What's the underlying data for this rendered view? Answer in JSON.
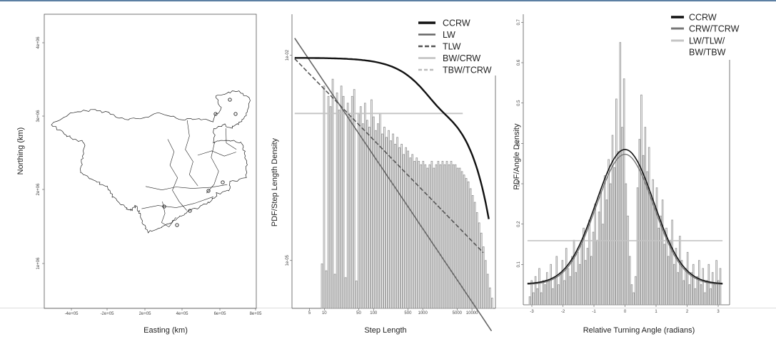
{
  "figure": {
    "panels": [
      "map",
      "step-length",
      "turning-angle"
    ]
  },
  "chart_data": [
    {
      "type": "map",
      "xlabel": "Easting (km)",
      "ylabel": "Northing (km)",
      "x_ticks": [
        "-4e+05",
        "-2e+05",
        "2e+05",
        "4e+05",
        "6e+05",
        "8e+05"
      ],
      "y_ticks": [
        "4e+06",
        "3e+06",
        "2e+06",
        "1e+06"
      ],
      "track_color": "#222222"
    },
    {
      "type": "bar",
      "scale": "log-log",
      "xlabel": "Step Length",
      "ylabel": "PDF/Step Length Density",
      "x_ticks": [
        "5",
        "10",
        "50",
        "100",
        "500",
        "1000",
        "5000",
        "10000"
      ],
      "y_ticks": [
        "1e-02",
        "1e-05"
      ],
      "xlim": [
        2.2,
        30000
      ],
      "ylim_log10": [
        -5.7,
        -1.4
      ],
      "hist_log10_density": [
        -5.05,
        -2.45,
        -5.15,
        -2.6,
        -2.75,
        -2.35,
        -5.2,
        -2.55,
        -2.8,
        -2.45,
        -2.6,
        -5.25,
        -2.7,
        -2.9,
        -2.6,
        -2.5,
        -5.3,
        -2.85,
        -2.75,
        -3.0,
        -2.7,
        -2.95,
        -3.05,
        -2.65,
        -2.9,
        -3.1,
        -3.0,
        -2.85,
        -3.15,
        -3.05,
        -3.2,
        -3.1,
        -3.25,
        -3.15,
        -3.3,
        -3.2,
        -3.35,
        -3.3,
        -3.45,
        -3.35,
        -3.4,
        -3.5,
        -3.45,
        -3.55,
        -3.5,
        -3.55,
        -3.6,
        -3.55,
        -3.6,
        -3.65,
        -3.6,
        -3.55,
        -3.65,
        -3.6,
        -3.55,
        -3.6,
        -3.55,
        -3.6,
        -3.55,
        -3.6,
        -3.55,
        -3.6,
        -3.6,
        -3.65,
        -3.65,
        -3.7,
        -3.75,
        -3.8,
        -3.85,
        -3.95,
        -4.05,
        -4.15,
        -4.3,
        -4.45,
        -4.6,
        -4.8,
        -5.0,
        -5.2,
        -5.4,
        -5.55
      ],
      "legend": [
        {
          "label": "CCRW",
          "color": "#111111",
          "width": 2.4,
          "dash": ""
        },
        {
          "label": "LW",
          "color": "#666666",
          "width": 1.6,
          "dash": ""
        },
        {
          "label": "TLW",
          "color": "#555555",
          "width": 1.6,
          "dash": "6,3"
        },
        {
          "label": "BW/CRW",
          "color": "#c4c4c4",
          "width": 1.8,
          "dash": ""
        },
        {
          "label": "TBW/TCRW",
          "color": "#bbbbbb",
          "width": 1.6,
          "dash": "5,3"
        }
      ]
    },
    {
      "type": "bar",
      "xlabel": "Relative Turning Angle (radians)",
      "ylabel": "PDF/Angle Density",
      "x_ticks": [
        "-3",
        "-2",
        "-1",
        "0",
        "1",
        "2",
        "3"
      ],
      "y_ticks": [
        "0.1",
        "0.2",
        "0.3",
        "0.4",
        "0.5",
        "0.6",
        "0.7"
      ],
      "xlim": [
        -3.15,
        3.15
      ],
      "ylim": [
        0,
        0.72
      ],
      "hist_density": [
        0.02,
        0.06,
        0.03,
        0.07,
        0.04,
        0.09,
        0.03,
        0.06,
        0.05,
        0.08,
        0.06,
        0.1,
        0.04,
        0.07,
        0.12,
        0.05,
        0.08,
        0.11,
        0.06,
        0.14,
        0.09,
        0.07,
        0.12,
        0.16,
        0.08,
        0.13,
        0.1,
        0.15,
        0.19,
        0.11,
        0.14,
        0.21,
        0.12,
        0.18,
        0.25,
        0.16,
        0.23,
        0.28,
        0.2,
        0.32,
        0.26,
        0.36,
        0.3,
        0.42,
        0.34,
        0.51,
        0.38,
        0.65,
        0.44,
        0.56,
        0.3,
        0.22,
        0.12,
        0.05,
        0.03,
        0.07,
        0.29,
        0.41,
        0.52,
        0.37,
        0.44,
        0.33,
        0.39,
        0.27,
        0.31,
        0.24,
        0.29,
        0.19,
        0.22,
        0.26,
        0.15,
        0.19,
        0.12,
        0.16,
        0.21,
        0.1,
        0.14,
        0.08,
        0.17,
        0.11,
        0.06,
        0.09,
        0.13,
        0.05,
        0.08,
        0.1,
        0.04,
        0.07,
        0.11,
        0.05,
        0.09,
        0.03,
        0.06,
        0.1,
        0.04,
        0.08,
        0.05,
        0.11,
        0.06,
        0.09
      ],
      "legend": [
        {
          "label": "CCRW",
          "color": "#111111",
          "width": 2.4,
          "dash": ""
        },
        {
          "label": "CRW/TCRW",
          "color": "#777777",
          "width": 2.0,
          "dash": ""
        },
        {
          "label": "LW/TLW/",
          "color": "#c4c4c4",
          "width": 2.0,
          "dash": ""
        },
        {
          "label": "BW/TBW",
          "color": "",
          "width": 0,
          "dash": ""
        }
      ]
    }
  ]
}
